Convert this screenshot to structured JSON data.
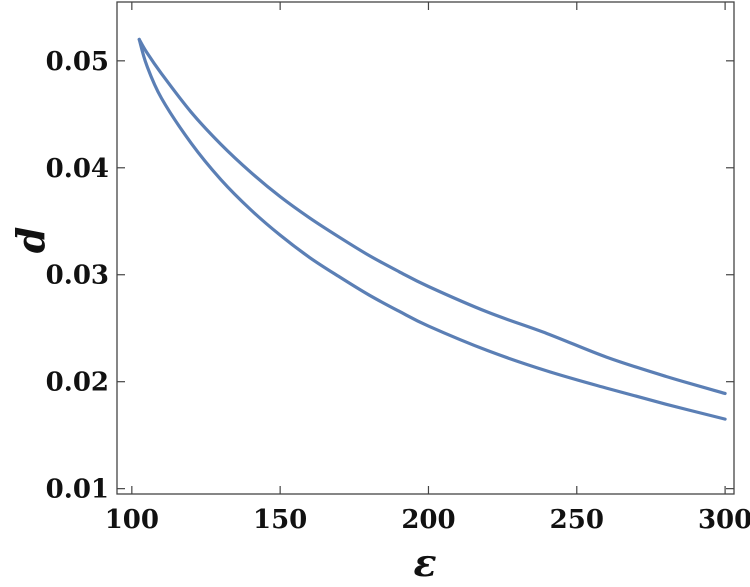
{
  "chart_data": {
    "type": "line",
    "title": "",
    "xlabel": "ε",
    "ylabel": "d",
    "xlim": [
      95,
      303
    ],
    "ylim": [
      0.0095,
      0.0555
    ],
    "xticks": [
      100,
      150,
      200,
      250,
      300
    ],
    "xtick_labels": [
      "100",
      "150",
      "200",
      "250",
      "300"
    ],
    "yticks": [
      0.01,
      0.02,
      0.03,
      0.04,
      0.05
    ],
    "ytick_labels": [
      "0.01",
      "0.02",
      "0.03",
      "0.04",
      "0.05"
    ],
    "grid": false,
    "legend": "none",
    "color": "#5b7fb5",
    "series": [
      {
        "x": [
          102.5,
          105,
          110,
          120,
          130,
          140,
          150,
          160,
          170,
          180,
          190,
          200,
          220,
          240,
          260,
          280,
          300
        ],
        "y": [
          0.052,
          0.0508,
          0.0488,
          0.0452,
          0.0422,
          0.0396,
          0.0373,
          0.0353,
          0.0335,
          0.0318,
          0.0303,
          0.0289,
          0.0265,
          0.0245,
          0.0223,
          0.0205,
          0.0189
        ]
      },
      {
        "x": [
          102.5,
          105,
          110,
          120,
          130,
          140,
          150,
          160,
          170,
          180,
          190,
          200,
          220,
          240,
          260,
          280,
          300
        ],
        "y": [
          0.052,
          0.0496,
          0.0465,
          0.0423,
          0.0389,
          0.0361,
          0.0337,
          0.0316,
          0.0298,
          0.0281,
          0.0266,
          0.0252,
          0.0229,
          0.021,
          0.0194,
          0.0179,
          0.0165
        ]
      }
    ]
  }
}
